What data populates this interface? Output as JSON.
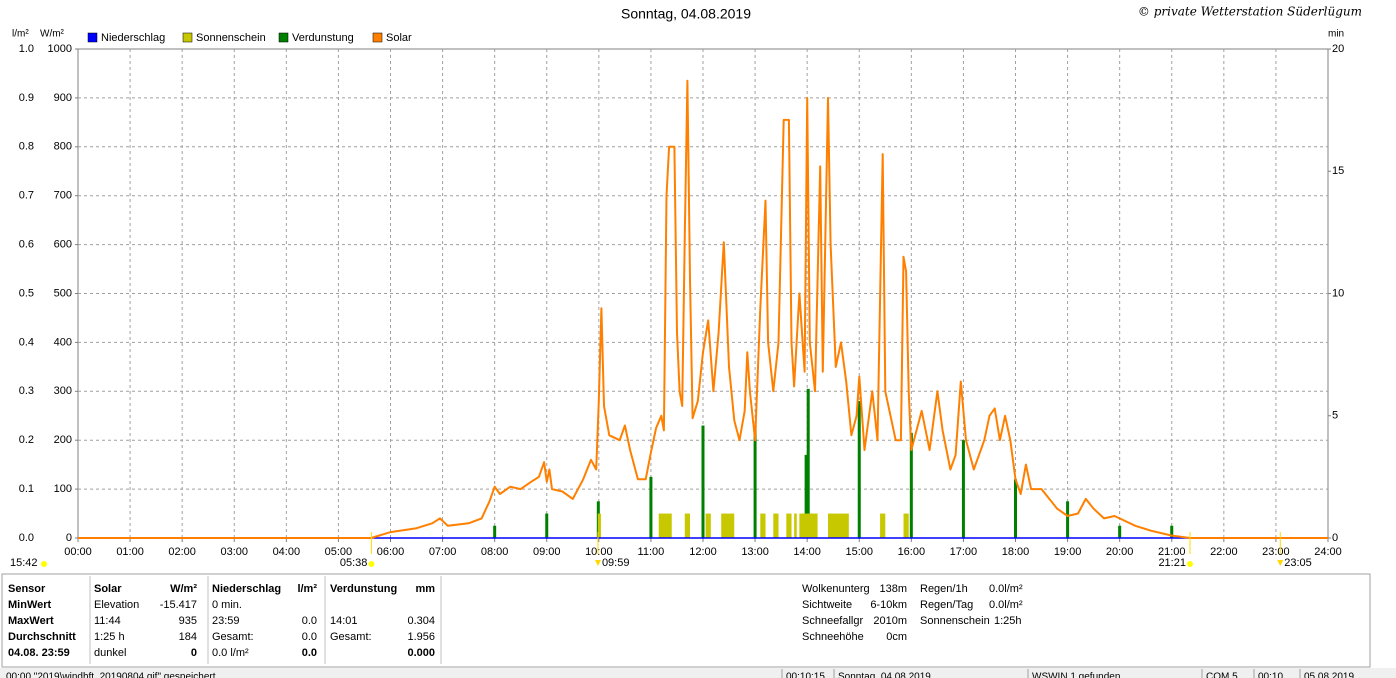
{
  "chart_data": {
    "type": "line",
    "title": "Sonntag, 04.08.2019",
    "credit": "© private Wetterstation Süderlügum",
    "y_label": "l/m²",
    "y3_label": "W/m²",
    "y2_label": "min",
    "xlim": [
      0,
      24
    ],
    "xticks": [
      {
        "value": 0,
        "label": "00:00"
      },
      {
        "value": 1,
        "label": "01:00"
      },
      {
        "value": 2,
        "label": "02:00"
      },
      {
        "value": 3,
        "label": "03:00"
      },
      {
        "value": 4,
        "label": "04:00"
      },
      {
        "value": 5,
        "label": "05:00"
      },
      {
        "value": 6,
        "label": "06:00"
      },
      {
        "value": 7,
        "label": "07:00"
      },
      {
        "value": 8,
        "label": "08:00"
      },
      {
        "value": 9,
        "label": "09:00"
      },
      {
        "value": 10,
        "label": "10:00"
      },
      {
        "value": 11,
        "label": "11:00"
      },
      {
        "value": 12,
        "label": "12:00"
      },
      {
        "value": 13,
        "label": "13:00"
      },
      {
        "value": 14,
        "label": "14:00"
      },
      {
        "value": 15,
        "label": "15:00"
      },
      {
        "value": 16,
        "label": "16:00"
      },
      {
        "value": 17,
        "label": "17:00"
      },
      {
        "value": 18,
        "label": "18:00"
      },
      {
        "value": 19,
        "label": "19:00"
      },
      {
        "value": 20,
        "label": "20:00"
      },
      {
        "value": 21,
        "label": "21:00"
      },
      {
        "value": 22,
        "label": "22:00"
      },
      {
        "value": 23,
        "label": "23:00"
      },
      {
        "value": 24,
        "label": "24:00"
      }
    ],
    "ylim": [
      0,
      1
    ],
    "yticks": [
      {
        "value": 0,
        "label": "0.0"
      },
      0.1,
      0.2,
      0.3,
      0.4,
      0.5,
      0.6,
      0.7,
      0.8,
      0.9,
      {
        "value": 1,
        "label": "1.0"
      }
    ],
    "y3lim": [
      0,
      1000
    ],
    "y3ticks": [
      0,
      100,
      200,
      300,
      400,
      500,
      600,
      700,
      800,
      900,
      1000
    ],
    "y2lim": [
      0,
      20
    ],
    "y2ticks": [
      0,
      5,
      10,
      15,
      20
    ],
    "grid": true,
    "series": [
      {
        "name": "Niederschlag",
        "color": "#0000ff",
        "kind": "line",
        "axis": "y",
        "x": [
          0,
          24
        ],
        "values": [
          0,
          0
        ]
      },
      {
        "name": "Sonnenschein",
        "color": "#c8c800",
        "text_color": "#b4b400",
        "kind": "interval",
        "axis": "y2",
        "intervals": [
          [
            9.98,
            10.04
          ],
          [
            11.15,
            11.4
          ],
          [
            11.65,
            11.75
          ],
          [
            12.05,
            12.15
          ],
          [
            12.35,
            12.6
          ],
          [
            13.1,
            13.2
          ],
          [
            13.35,
            13.45
          ],
          [
            13.6,
            13.7
          ],
          [
            13.75,
            13.8
          ],
          [
            13.85,
            14.2
          ],
          [
            14.4,
            14.8
          ],
          [
            15.4,
            15.5
          ],
          [
            15.85,
            15.95
          ]
        ],
        "values": [
          1,
          1,
          1,
          1,
          1,
          1,
          1,
          1,
          1,
          1,
          1,
          1,
          1
        ]
      },
      {
        "name": "Verdunstung",
        "color": "#008000",
        "kind": "bar",
        "axis": "y",
        "x": [
          8.0,
          9.0,
          9.99,
          11.0,
          12.0,
          13.0,
          13.98,
          14.02,
          15.0,
          16.0,
          17.0,
          18.0,
          19.0,
          20.0,
          21.0
        ],
        "values": [
          0.025,
          0.05,
          0.075,
          0.125,
          0.23,
          0.23,
          0.17,
          0.305,
          0.28,
          0.215,
          0.2,
          0.12,
          0.075,
          0.025,
          0.025
        ]
      },
      {
        "name": "Solar",
        "color": "#ff8000",
        "kind": "line",
        "axis": "y3",
        "x": [
          0,
          5.63,
          6.0,
          6.5,
          6.8,
          6.95,
          7.1,
          7.5,
          7.75,
          7.9,
          8.0,
          8.1,
          8.3,
          8.5,
          8.7,
          8.85,
          8.95,
          9.0,
          9.05,
          9.1,
          9.3,
          9.5,
          9.7,
          9.85,
          9.95,
          10.0,
          10.05,
          10.1,
          10.2,
          10.4,
          10.5,
          10.6,
          10.75,
          10.9,
          11.0,
          11.1,
          11.2,
          11.25,
          11.3,
          11.35,
          11.45,
          11.5,
          11.55,
          11.6,
          11.65,
          11.7,
          11.75,
          11.8,
          11.9,
          12.0,
          12.1,
          12.2,
          12.3,
          12.4,
          12.5,
          12.6,
          12.7,
          12.8,
          12.85,
          12.9,
          13.0,
          13.1,
          13.2,
          13.25,
          13.35,
          13.45,
          13.55,
          13.65,
          13.7,
          13.75,
          13.85,
          13.95,
          14.0,
          14.05,
          14.15,
          14.25,
          14.3,
          14.4,
          14.45,
          14.55,
          14.65,
          14.75,
          14.85,
          14.95,
          15.0,
          15.1,
          15.25,
          15.35,
          15.45,
          15.5,
          15.6,
          15.7,
          15.8,
          15.85,
          15.9,
          15.95,
          16.0,
          16.2,
          16.35,
          16.5,
          16.6,
          16.75,
          16.85,
          16.95,
          17.05,
          17.2,
          17.4,
          17.5,
          17.6,
          17.7,
          17.8,
          17.9,
          18.0,
          18.1,
          18.2,
          18.3,
          18.5,
          18.8,
          19.0,
          19.2,
          19.35,
          19.5,
          19.7,
          19.9,
          20.1,
          20.3,
          20.6,
          21.0,
          21.35,
          24
        ],
        "values": [
          0,
          0,
          12,
          20,
          30,
          40,
          25,
          30,
          40,
          75,
          105,
          90,
          105,
          100,
          115,
          125,
          155,
          115,
          140,
          100,
          95,
          80,
          120,
          160,
          140,
          280,
          470,
          270,
          210,
          200,
          230,
          180,
          120,
          120,
          175,
          225,
          250,
          220,
          700,
          800,
          800,
          420,
          300,
          270,
          620,
          935,
          530,
          245,
          280,
          380,
          445,
          300,
          420,
          605,
          350,
          240,
          200,
          260,
          380,
          300,
          200,
          470,
          690,
          400,
          300,
          400,
          855,
          855,
          400,
          310,
          500,
          340,
          900,
          400,
          300,
          760,
          340,
          900,
          600,
          350,
          400,
          320,
          210,
          250,
          330,
          180,
          300,
          200,
          785,
          300,
          250,
          200,
          200,
          575,
          545,
          300,
          180,
          260,
          180,
          300,
          220,
          140,
          170,
          320,
          200,
          140,
          200,
          250,
          265,
          200,
          250,
          200,
          120,
          90,
          150,
          100,
          100,
          60,
          45,
          50,
          80,
          60,
          40,
          45,
          35,
          25,
          15,
          5,
          0,
          0
        ]
      }
    ],
    "markers": [
      {
        "label": "15:42",
        "shape": "dot"
      },
      {
        "x": 5.633,
        "label": "05:38",
        "shape": "dot"
      },
      {
        "x": 9.983,
        "label": "09:59",
        "shape": "triangle"
      },
      {
        "x": 21.35,
        "label": "21:21",
        "shape": "dot"
      },
      {
        "x": 23.083,
        "label": "23:05",
        "shape": "triangle"
      }
    ]
  },
  "panel": {
    "labels": [
      "Sensor",
      "MinWert",
      "MaxWert",
      "Durchschnitt",
      "04.08. 23:59"
    ],
    "solar": {
      "head": [
        "Solar",
        "W/m²"
      ],
      "rows": [
        [
          "Elevation",
          "-15.417"
        ],
        [
          "11:44",
          "935"
        ],
        [
          "1:25 h",
          "184"
        ],
        [
          "dunkel",
          "0"
        ]
      ]
    },
    "niederschlag": {
      "head": [
        "Niederschlag",
        "l/m²"
      ],
      "rows": [
        [
          "0 min."
        ],
        [
          "23:59",
          "0.0"
        ],
        [
          "Gesamt:",
          "0.0"
        ],
        [
          "0.0 l/m²",
          "0.0"
        ]
      ]
    },
    "verdunstung": {
      "head": [
        "Verdunstung",
        "mm"
      ],
      "rows": [
        [
          "14:01",
          "0.304"
        ],
        [
          "Gesamt:",
          "1.956"
        ],
        [
          "0.000"
        ]
      ]
    },
    "info1": [
      [
        "Wolkenunterg",
        "138m"
      ],
      [
        "Sichtweite",
        "6-10km"
      ],
      [
        "Schneefallgr",
        "2010m"
      ],
      [
        "Schneehöhe",
        "0cm"
      ]
    ],
    "info2": [
      [
        "Regen/1h",
        "0.0l/m²"
      ],
      [
        "Regen/Tag",
        "0.0l/m²"
      ],
      [
        "Sonnenschein",
        "1:25h"
      ]
    ]
  },
  "status": [
    "00:00 \"2019\\windhft_20190804.gif\" gespeichert",
    "00:10:15",
    "Sonntag, 04.08.2019",
    "WSWIN 1 gefunden",
    "COM 5",
    "00:10",
    "05.08.2019"
  ]
}
